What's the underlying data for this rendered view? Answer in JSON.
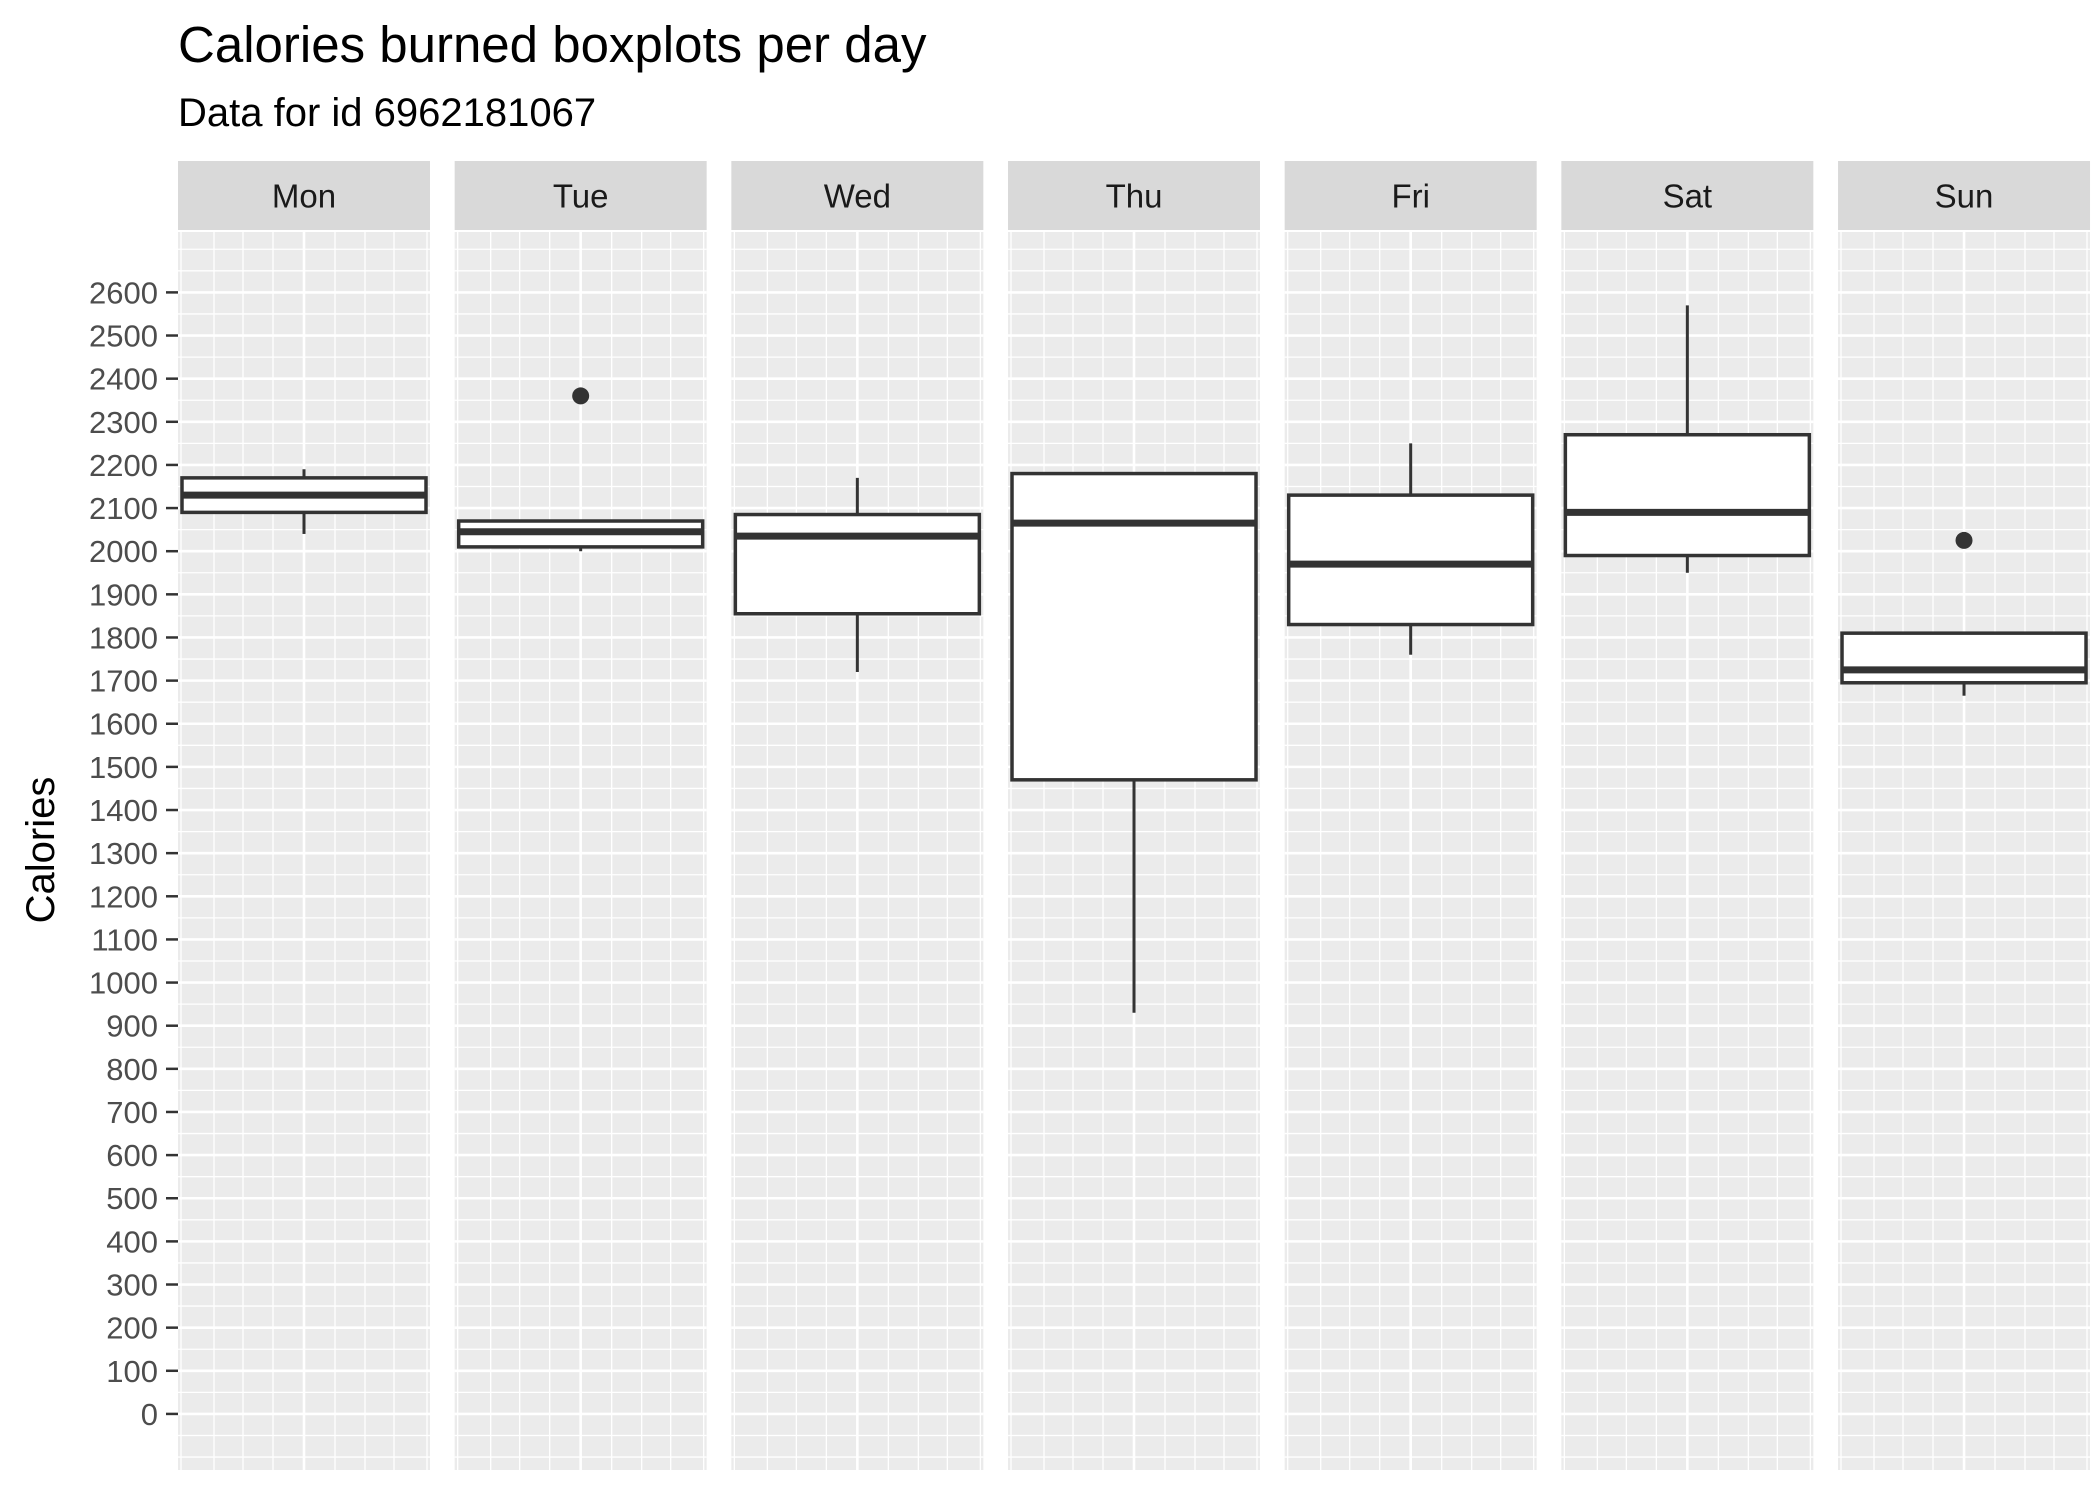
{
  "chart_data": {
    "type": "boxplot",
    "title": "Calories burned boxplots per day",
    "subtitle": "Data for id 6962181067",
    "xlabel": "",
    "ylabel": "Calories",
    "ylim": [
      -130,
      2740
    ],
    "yticks": [
      0,
      100,
      200,
      300,
      400,
      500,
      600,
      700,
      800,
      900,
      1000,
      1100,
      1200,
      1300,
      1400,
      1500,
      1600,
      1700,
      1800,
      1900,
      2000,
      2100,
      2200,
      2300,
      2400,
      2500,
      2600
    ],
    "grid": true,
    "panel_background": "#ebebeb",
    "strip_background": "#d9d9d9",
    "box_fill": "#ffffff",
    "box_stroke": "#333333",
    "facets": [
      {
        "label": "Mon",
        "whisker_low": 2040,
        "q1": 2090,
        "median": 2130,
        "q3": 2170,
        "whisker_high": 2190,
        "outliers": []
      },
      {
        "label": "Tue",
        "whisker_low": 2000,
        "q1": 2010,
        "median": 2045,
        "q3": 2070,
        "whisker_high": 2070,
        "outliers": [
          2360
        ]
      },
      {
        "label": "Wed",
        "whisker_low": 1720,
        "q1": 1855,
        "median": 2035,
        "q3": 2085,
        "whisker_high": 2170,
        "outliers": []
      },
      {
        "label": "Thu",
        "whisker_low": 930,
        "q1": 1470,
        "median": 2065,
        "q3": 2180,
        "whisker_high": 2180,
        "outliers": []
      },
      {
        "label": "Fri",
        "whisker_low": 1760,
        "q1": 1830,
        "median": 1970,
        "q3": 2130,
        "whisker_high": 2250,
        "outliers": []
      },
      {
        "label": "Sat",
        "whisker_low": 1950,
        "q1": 1990,
        "median": 2090,
        "q3": 2270,
        "whisker_high": 2570,
        "outliers": []
      },
      {
        "label": "Sun",
        "whisker_low": 1665,
        "q1": 1695,
        "median": 1725,
        "q3": 1810,
        "whisker_high": 1810,
        "outliers": [
          2025
        ]
      }
    ]
  }
}
